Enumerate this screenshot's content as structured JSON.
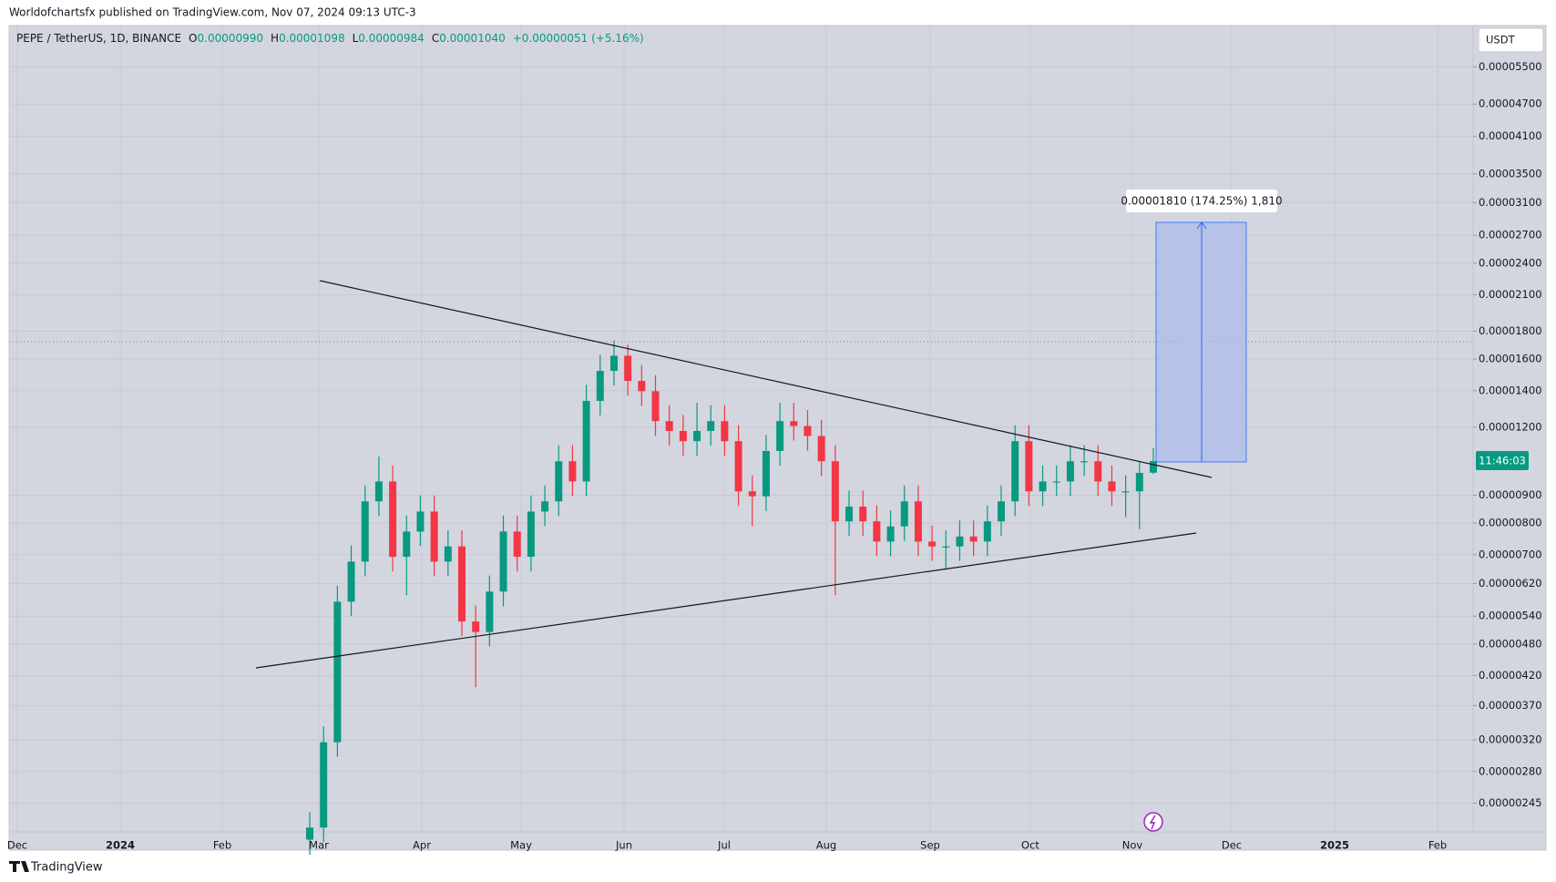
{
  "header": {
    "published": "Worldofchartsfx published on TradingView.com, Nov 07, 2024 09:13 UTC-3",
    "footer": "TradingView"
  },
  "chart_data": {
    "type": "candlestick",
    "symbol": "PEPE / TetherUS, 1D, BINANCE",
    "legend": {
      "o_label": "O",
      "open": "0.00000990",
      "h_label": "H",
      "high": "0.00001098",
      "l_label": "L",
      "low": "0.00000984",
      "c_label": "C",
      "close": "0.00001040",
      "change": "+0.00000051 (+5.16%)"
    },
    "currency": "USDT",
    "countdown": "11:46:03",
    "measure_label": "0.00001810 (174.25%) 1,810",
    "log_scale": true,
    "grid": true,
    "up_color": "#089981",
    "down_color": "#f23645",
    "xticks": [
      "Dec",
      "2024",
      "Feb",
      "Mar",
      "Apr",
      "May",
      "Jun",
      "Jul",
      "Aug",
      "Sep",
      "Oct",
      "Nov",
      "Dec",
      "2025",
      "Feb"
    ],
    "ylim": [
      2.17e-06,
      6.55e-05
    ],
    "yticks": [
      {
        "value": 5.5e-05,
        "label": "0.00005500"
      },
      {
        "value": 4.7e-05,
        "label": "0.00004700"
      },
      {
        "value": 4.1e-05,
        "label": "0.00004100"
      },
      {
        "value": 3.5e-05,
        "label": "0.00003500"
      },
      {
        "value": 3.1e-05,
        "label": "0.00003100"
      },
      {
        "value": 2.7e-05,
        "label": "0.00002700"
      },
      {
        "value": 2.4e-05,
        "label": "0.00002400"
      },
      {
        "value": 2.1e-05,
        "label": "0.00002100"
      },
      {
        "value": 1.8e-05,
        "label": "0.00001800"
      },
      {
        "value": 1.6e-05,
        "label": "0.00001600"
      },
      {
        "value": 1.4e-05,
        "label": "0.00001400"
      },
      {
        "value": 1.2e-05,
        "label": "0.00001200"
      },
      {
        "value": 9e-06,
        "label": "0.00000900"
      },
      {
        "value": 8e-06,
        "label": "0.00000800"
      },
      {
        "value": 7e-06,
        "label": "0.00000700"
      },
      {
        "value": 6.2e-06,
        "label": "0.00000620"
      },
      {
        "value": 5.4e-06,
        "label": "0.00000540"
      },
      {
        "value": 4.8e-06,
        "label": "0.00000480"
      },
      {
        "value": 4.2e-06,
        "label": "0.00000420"
      },
      {
        "value": 3.7e-06,
        "label": "0.00000370"
      },
      {
        "value": 3.2e-06,
        "label": "0.00000320"
      },
      {
        "value": 2.8e-06,
        "label": "0.00000280"
      },
      {
        "value": 2.45e-06,
        "label": "0.00000245"
      }
    ],
    "open": [
      2.1e-06,
      2.21e-06,
      3.17e-06,
      5.74e-06,
      6.8e-06,
      8.77e-06,
      9.54e-06,
      6.94e-06,
      7.72e-06,
      8.4e-06,
      6.8e-06,
      7.25e-06,
      5.28e-06,
      5.05e-06,
      5.99e-06,
      7.72e-06,
      6.94e-06,
      8.4e-06,
      8.77e-06,
      1.039e-05,
      9.54e-06,
      1.341e-05,
      1.522e-05,
      1.623e-05,
      1.459e-05,
      1.397e-05,
      1.231e-05,
      1.181e-05,
      1.131e-05,
      1.181e-05,
      1.231e-05,
      1.131e-05,
      9.15e-06,
      8.96e-06,
      1.085e-05,
      1.231e-05,
      1.206e-05,
      1.156e-05,
      1.039e-05,
      8.06e-06,
      8.58e-06,
      8.06e-06,
      7.4e-06,
      7.89e-06,
      8.77e-06,
      7.4e-06,
      7.25e-06,
      7.25e-06,
      7.56e-06,
      7.4e-06,
      8.06e-06,
      8.77e-06,
      1.131e-05,
      9.15e-06,
      9.54e-06,
      9.54e-06,
      1.039e-05,
      1.039e-05,
      9.54e-06,
      9.15e-06,
      9.15e-06,
      9.9e-06
    ],
    "high": [
      2.36e-06,
      3.39e-06,
      6.14e-06,
      7.28e-06,
      9.38e-06,
      1.06e-05,
      1.021e-05,
      8.26e-06,
      8.99e-06,
      8.99e-06,
      7.76e-06,
      7.76e-06,
      5.65e-06,
      6.41e-06,
      8.26e-06,
      8.26e-06,
      8.99e-06,
      9.38e-06,
      1.112e-05,
      1.112e-05,
      1.435e-05,
      1.629e-05,
      1.73e-05,
      1.7e-05,
      1.561e-05,
      1.495e-05,
      1.317e-05,
      1.264e-05,
      1.33e-05,
      1.317e-05,
      1.317e-05,
      1.21e-05,
      9.79e-06,
      1.161e-05,
      1.33e-05,
      1.33e-05,
      1.29e-05,
      1.237e-05,
      1.112e-05,
      9.18e-06,
      9.18e-06,
      8.62e-06,
      8.44e-06,
      9.38e-06,
      9.38e-06,
      7.92e-06,
      7.76e-06,
      8.09e-06,
      8.09e-06,
      8.62e-06,
      9.38e-06,
      1.21e-05,
      1.21e-05,
      1.021e-05,
      1.021e-05,
      1.112e-05,
      1.112e-05,
      1.112e-05,
      1.021e-05,
      9.79e-06,
      1.04e-05,
      1.098e-05
    ],
    "low": [
      1.97e-06,
      2.08e-06,
      2.98e-06,
      5.4e-06,
      6.39e-06,
      8.24e-06,
      6.52e-06,
      5.9e-06,
      7.26e-06,
      6.39e-06,
      6.39e-06,
      4.96e-06,
      4e-06,
      4.75e-06,
      5.63e-06,
      6.52e-06,
      6.52e-06,
      7.9e-06,
      8.24e-06,
      8.97e-06,
      8.97e-06,
      1.261e-05,
      1.431e-05,
      1.371e-05,
      1.313e-05,
      1.157e-05,
      1.11e-05,
      1.063e-05,
      1.063e-05,
      1.11e-05,
      1.063e-05,
      8.6e-06,
      7.9e-06,
      8.42e-06,
      1.02e-05,
      1.134e-05,
      1.087e-05,
      9.77e-06,
      5.9e-06,
      7.58e-06,
      7.58e-06,
      6.96e-06,
      6.96e-06,
      7.42e-06,
      6.96e-06,
      6.82e-06,
      6.6e-06,
      6.82e-06,
      6.96e-06,
      6.96e-06,
      7.58e-06,
      8.24e-06,
      8.6e-06,
      8.6e-06,
      8.97e-06,
      8.97e-06,
      9.77e-06,
      8.97e-06,
      8.6e-06,
      8.2e-06,
      7.8e-06,
      9.84e-06
    ],
    "close": [
      2.21e-06,
      3.17e-06,
      5.74e-06,
      6.8e-06,
      8.77e-06,
      9.54e-06,
      6.94e-06,
      7.72e-06,
      8.4e-06,
      6.8e-06,
      7.25e-06,
      5.28e-06,
      5.05e-06,
      5.99e-06,
      7.72e-06,
      6.94e-06,
      8.4e-06,
      8.77e-06,
      1.039e-05,
      9.54e-06,
      1.341e-05,
      1.522e-05,
      1.623e-05,
      1.459e-05,
      1.397e-05,
      1.231e-05,
      1.181e-05,
      1.131e-05,
      1.181e-05,
      1.231e-05,
      1.131e-05,
      9.15e-06,
      8.96e-06,
      1.085e-05,
      1.231e-05,
      1.206e-05,
      1.156e-05,
      1.039e-05,
      8.06e-06,
      8.58e-06,
      8.06e-06,
      7.4e-06,
      7.89e-06,
      8.77e-06,
      7.4e-06,
      7.25e-06,
      7.25e-06,
      7.56e-06,
      7.4e-06,
      8.06e-06,
      8.77e-06,
      1.131e-05,
      9.15e-06,
      9.54e-06,
      9.54e-06,
      1.039e-05,
      1.039e-05,
      9.54e-06,
      9.15e-06,
      9.15e-06,
      9.89e-06,
      1.04e-05
    ]
  }
}
